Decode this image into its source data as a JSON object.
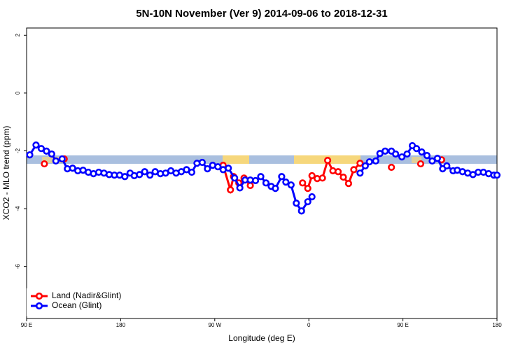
{
  "chart_data": {
    "type": "line",
    "title": "5N-10N November (Ver 9)   2014-09-06 to 2018-12-31",
    "xlabel": "Longitude (deg E)",
    "ylabel": "XCO2 - MLO trend (ppm)",
    "xlim": [
      90,
      540
    ],
    "xticks": [
      {
        "value": 90,
        "label": "90 E"
      },
      180,
      {
        "value": 270,
        "label": "90 W"
      },
      {
        "value": 360,
        "label": "0"
      },
      {
        "value": 450,
        "label": "90 E"
      },
      {
        "value": 540,
        "label": "180"
      }
    ],
    "ylim": [
      -7.8,
      2.25
    ],
    "yticks": [
      -6,
      -4,
      -2,
      0,
      2
    ],
    "legend": "bottom-left",
    "series": [
      {
        "name": "Land (Nadir&Glint)",
        "color": "#ff0000",
        "x": [
          107,
          116,
          126,
          270,
          278,
          285,
          288,
          293,
          298,
          304,
          330,
          354,
          359,
          363,
          368,
          373,
          378,
          383,
          388,
          393,
          398,
          403,
          409,
          425,
          439,
          455,
          467,
          478,
          487
        ],
        "values": [
          -2.45,
          null,
          -2.28,
          null,
          -2.5,
          -3.35,
          -2.89,
          -3.11,
          -2.94,
          -3.2,
          null,
          -3.11,
          -3.3,
          -2.86,
          -2.96,
          -2.94,
          -2.33,
          -2.69,
          -2.72,
          -2.91,
          -3.13,
          -2.65,
          -2.43,
          null,
          -2.57,
          null,
          -2.45,
          null,
          -2.31
        ]
      },
      {
        "name": "Ocean (Glint)",
        "color": "#0000ff",
        "x": [
          93,
          99,
          104,
          109,
          114,
          118,
          124,
          129,
          134,
          139,
          144,
          149,
          154,
          159,
          164,
          169,
          174,
          179,
          184,
          189,
          193,
          198,
          203,
          208,
          213,
          218,
          223,
          228,
          233,
          238,
          243,
          248,
          253,
          258,
          263,
          268,
          273,
          278,
          283,
          289,
          294,
          299,
          304,
          309,
          314,
          319,
          324,
          328,
          334,
          338,
          343,
          348,
          353,
          359,
          363,
          380,
          409,
          414,
          418,
          424,
          428,
          433,
          439,
          443,
          449,
          454,
          459,
          463,
          468,
          473,
          478,
          483,
          488,
          492,
          498,
          502,
          507,
          512,
          517,
          522,
          527,
          532,
          537,
          540
        ],
        "values": [
          -2.14,
          -1.8,
          -1.92,
          -2.01,
          -2.11,
          -2.35,
          -2.28,
          -2.62,
          -2.6,
          -2.69,
          -2.67,
          -2.74,
          -2.79,
          -2.74,
          -2.77,
          -2.82,
          -2.84,
          -2.84,
          -2.89,
          -2.77,
          -2.86,
          -2.82,
          -2.72,
          -2.84,
          -2.72,
          -2.79,
          -2.77,
          -2.69,
          -2.77,
          -2.72,
          -2.65,
          -2.74,
          -2.43,
          -2.4,
          -2.62,
          -2.5,
          -2.55,
          -2.65,
          -2.6,
          -2.94,
          -3.28,
          -3.01,
          -3.01,
          -3.03,
          -2.89,
          -3.11,
          -3.23,
          -3.3,
          -2.89,
          -3.08,
          -3.18,
          -3.81,
          -4.08,
          -3.76,
          -3.59,
          null,
          -2.77,
          -2.52,
          -2.38,
          -2.35,
          -2.09,
          -2.01,
          -2.01,
          -2.11,
          -2.21,
          -2.11,
          -1.82,
          -1.92,
          -2.04,
          -2.16,
          -2.35,
          -2.26,
          -2.62,
          -2.52,
          -2.69,
          -2.67,
          -2.72,
          -2.77,
          -2.82,
          -2.74,
          -2.74,
          -2.79,
          -2.84,
          -2.84
        ]
      }
    ]
  }
}
